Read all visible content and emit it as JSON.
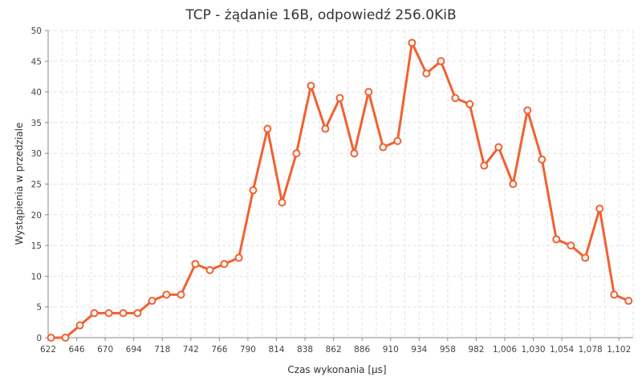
{
  "chart_data": {
    "type": "line",
    "title": "TCP - żądanie 16B, odpowiedź 256.0KiB",
    "xlabel": "Czas wykonania [µs]",
    "ylabel": "Wystąpienia w przedziale",
    "xlim": [
      622,
      1114
    ],
    "ylim": [
      0,
      50
    ],
    "x_ticks": [
      622,
      646,
      670,
      694,
      718,
      742,
      766,
      790,
      814,
      838,
      862,
      886,
      910,
      934,
      958,
      982,
      1006,
      1030,
      1054,
      1078,
      1102
    ],
    "x_tick_labels": [
      "622",
      "646",
      "670",
      "694",
      "718",
      "742",
      "766",
      "790",
      "814",
      "838",
      "862",
      "886",
      "910",
      "934",
      "958",
      "982",
      "1,006",
      "1,030",
      "1,054",
      "1,078",
      "1,102"
    ],
    "y_ticks": [
      0,
      5,
      10,
      15,
      20,
      25,
      30,
      35,
      40,
      45,
      50
    ],
    "grid": true,
    "color": "#f06132",
    "series": [
      {
        "x": [
          624.4,
          636.5,
          648.7,
          660.8,
          673,
          685.1,
          697.2,
          709.4,
          721.5,
          733.7,
          745.8,
          758,
          770.1,
          782.3,
          794.4,
          806.5,
          818.7,
          830.8,
          843,
          855.1,
          867.3,
          879.4,
          891.5,
          903.7,
          915.8,
          928,
          940.1,
          952.3,
          964.4,
          976.5,
          988.7,
          1000.8,
          1013,
          1025.1,
          1037.3,
          1049.4,
          1061.6,
          1073.7,
          1085.8,
          1098,
          1110.1
        ],
        "y": [
          0,
          0,
          2,
          4,
          4,
          4,
          4,
          6,
          7,
          7,
          12,
          11,
          12,
          13,
          24,
          34,
          22,
          30,
          41,
          34,
          39,
          30,
          40,
          31,
          32,
          48,
          43,
          45,
          39,
          38,
          28,
          31,
          25,
          37,
          29,
          16,
          15,
          13,
          21,
          7,
          6
        ]
      }
    ]
  }
}
